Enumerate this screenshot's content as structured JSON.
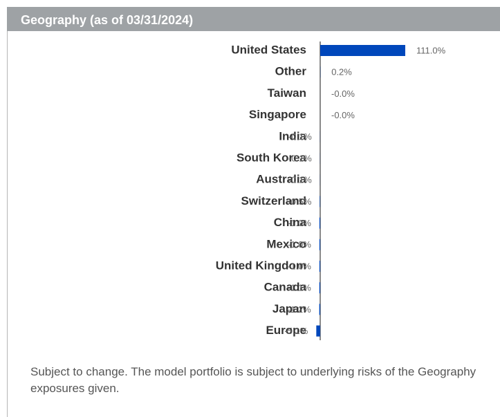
{
  "chart_data": {
    "type": "barh",
    "title": "Geography (as of 03/31/2024)",
    "categories": [
      "United States",
      "Other",
      "Taiwan",
      "Singapore",
      "India",
      "South Korea",
      "Australia",
      "Switzerland",
      "China",
      "Mexico",
      "United Kingdom",
      "Canada",
      "Japan",
      "Europe"
    ],
    "values": [
      111.0,
      0.2,
      -0.0,
      -0.0,
      -0.1,
      -0.1,
      -0.1,
      -0.5,
      -1.0,
      -1.0,
      -1.0,
      -1.1,
      -1.2,
      -5.1
    ],
    "value_labels": [
      "111.0%",
      "0.2%",
      "-0.0%",
      "-0.0%",
      "-0.1%",
      "-0.1%",
      "-0.1%",
      "-0.5%",
      "-1.0%",
      "-1.0%",
      "-1.0%",
      "-1.1%",
      "-1.2%",
      "-5.1%"
    ],
    "color": "#0047bb",
    "footnote": "Subject to change. The model portfolio is subject to underlying risks of the Geography exposures given."
  }
}
